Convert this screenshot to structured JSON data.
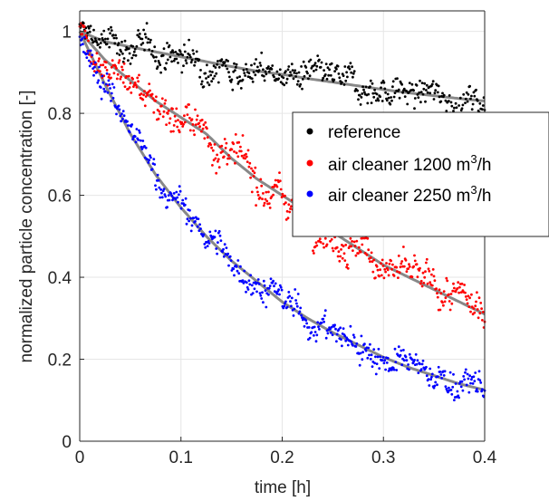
{
  "chart_data": {
    "type": "scatter",
    "title": "",
    "xlabel": "time [h]",
    "ylabel": "normalized particle concentration [-]",
    "xlim": [
      0,
      0.4
    ],
    "ylim": [
      0,
      1.05
    ],
    "xticks": [
      0,
      0.1,
      0.2,
      0.3,
      0.4
    ],
    "yticks": [
      0,
      0.2,
      0.4,
      0.6,
      0.8,
      1
    ],
    "xtick_labels": [
      "0",
      "0.1",
      "0.2",
      "0.3",
      "0.4"
    ],
    "ytick_labels": [
      "0",
      "0.2",
      "0.4",
      "0.6",
      "0.8",
      "1"
    ],
    "grid": true,
    "legend_position": "right",
    "axis_color": "#262626",
    "grid_color": "#e6e6e6",
    "fit_color": "#888888",
    "series": [
      {
        "name": "reference",
        "color": "#000000",
        "x": [
          0,
          0.025,
          0.05,
          0.075,
          0.1,
          0.125,
          0.15,
          0.175,
          0.2,
          0.225,
          0.25,
          0.275,
          0.3,
          0.325,
          0.35,
          0.375,
          0.4
        ],
        "y": [
          1.0,
          0.975,
          0.962,
          0.95,
          0.938,
          0.926,
          0.914,
          0.903,
          0.895,
          0.885,
          0.876,
          0.867,
          0.858,
          0.85,
          0.843,
          0.836,
          0.83
        ],
        "spread": 0.03
      },
      {
        "name": "air cleaner 1200 m3/h",
        "legend_base": "air cleaner 1200 m",
        "legend_sup": "3",
        "legend_tail": "/h",
        "color": "#ff0000",
        "x": [
          0,
          0.025,
          0.05,
          0.075,
          0.1,
          0.125,
          0.15,
          0.175,
          0.2,
          0.225,
          0.25,
          0.275,
          0.3,
          0.325,
          0.35,
          0.375,
          0.4
        ],
        "y": [
          1.0,
          0.93,
          0.88,
          0.83,
          0.79,
          0.75,
          0.69,
          0.64,
          0.6,
          0.56,
          0.51,
          0.47,
          0.43,
          0.4,
          0.37,
          0.34,
          0.31
        ],
        "spread": 0.035
      },
      {
        "name": "air cleaner 2250 m3/h",
        "legend_base": "air cleaner 2250 m",
        "legend_sup": "3",
        "legend_tail": "/h",
        "color": "#0000ff",
        "x": [
          0,
          0.025,
          0.05,
          0.075,
          0.1,
          0.125,
          0.15,
          0.175,
          0.2,
          0.225,
          0.25,
          0.275,
          0.3,
          0.325,
          0.35,
          0.375,
          0.4
        ],
        "y": [
          1.0,
          0.87,
          0.75,
          0.65,
          0.57,
          0.5,
          0.44,
          0.39,
          0.34,
          0.3,
          0.265,
          0.235,
          0.205,
          0.18,
          0.16,
          0.14,
          0.125
        ],
        "spread": 0.03
      }
    ]
  }
}
